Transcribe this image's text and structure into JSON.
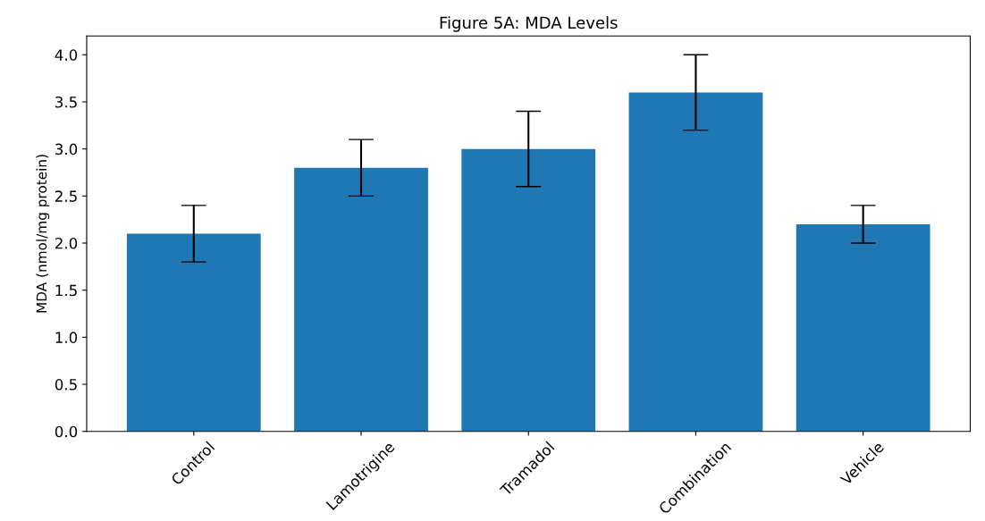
{
  "chart_data": {
    "type": "bar",
    "title": "Figure 5A: MDA Levels",
    "ylabel": "MDA (nmol/mg protein)",
    "categories": [
      "Control",
      "Lamotrigine",
      "Tramadol",
      "Combination",
      "Vehicle"
    ],
    "values": [
      2.1,
      2.8,
      3.0,
      3.6,
      2.2
    ],
    "errors": [
      0.3,
      0.3,
      0.4,
      0.4,
      0.2
    ],
    "color": "#1f77b4",
    "ylim": [
      0,
      4.2
    ],
    "yticks": [
      {
        "value": 0,
        "label": "0.0"
      },
      0.5,
      {
        "value": 1,
        "label": "1.0"
      },
      1.5,
      {
        "value": 2,
        "label": "2.0"
      },
      2.5,
      {
        "value": 3,
        "label": "3.0"
      },
      3.5,
      {
        "value": 4,
        "label": "4.0"
      }
    ],
    "grid": false
  }
}
